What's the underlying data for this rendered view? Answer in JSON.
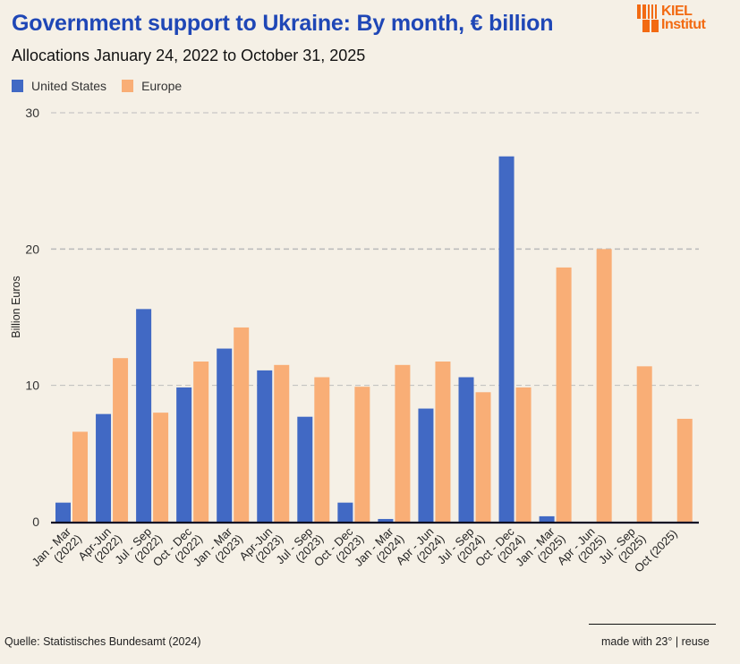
{
  "header": {
    "title": "Government support to Ukraine: By month, € billion",
    "subtitle": "Allocations January 24, 2022 to October 31, 2025",
    "logo_line1": "KIEL",
    "logo_line2": "Institut"
  },
  "colors": {
    "background": "#f5f0e6",
    "title": "#1f47b6",
    "united_states": "#4169c4",
    "europe": "#f9ae76",
    "logo": "#f26a12",
    "grid": "#bdbdbd",
    "axis": "#0b0b24"
  },
  "footer": {
    "source": "Quelle: Statistisches Bundesamt (2024)",
    "made_with": "made with 23°",
    "separator": "|",
    "reuse": "reuse"
  },
  "chart_data": {
    "type": "bar",
    "title": "Government support to Ukraine: By month, € billion",
    "subtitle": "Allocations January 24, 2022 to October 31, 2025",
    "xlabel": "",
    "ylabel": "Billion Euros",
    "ylim": [
      0,
      30
    ],
    "yticks": [
      0,
      10,
      20,
      30
    ],
    "grid": true,
    "legend_position": "top-left",
    "categories": [
      [
        "Jan - Mar",
        "(2022)"
      ],
      [
        "Apr-Jun",
        "(2022)"
      ],
      [
        "Jul - Sep",
        "(2022)"
      ],
      [
        "Oct - Dec",
        "(2022)"
      ],
      [
        "Jan - Mar",
        "(2023)"
      ],
      [
        "Apr-Jun",
        "(2023)"
      ],
      [
        "Jul - Sep",
        "(2023)"
      ],
      [
        "Oct - Dec",
        "(2023)"
      ],
      [
        "Jan - Mar",
        "(2024)"
      ],
      [
        "Apr - Jun",
        "(2024)"
      ],
      [
        "Jul - Sep",
        "(2024)"
      ],
      [
        "Oct - Dec",
        "(2024)"
      ],
      [
        "Jan - Mar",
        "(2025)"
      ],
      [
        "Apr - Jun",
        "(2025)"
      ],
      [
        "Jul - Sep",
        "(2025)"
      ],
      [
        "Oct (2025)"
      ]
    ],
    "series": [
      {
        "name": "United States",
        "color": "#4169c4",
        "values": [
          1.4,
          7.9,
          15.6,
          9.85,
          12.7,
          11.1,
          7.7,
          1.4,
          0.2,
          8.3,
          10.6,
          26.8,
          0.4,
          0,
          0,
          0
        ]
      },
      {
        "name": "Europe",
        "color": "#f9ae76",
        "values": [
          6.6,
          12.0,
          8.0,
          11.75,
          14.25,
          11.5,
          10.6,
          9.9,
          11.5,
          11.75,
          9.5,
          9.85,
          18.65,
          20.0,
          11.4,
          7.55
        ]
      }
    ]
  }
}
